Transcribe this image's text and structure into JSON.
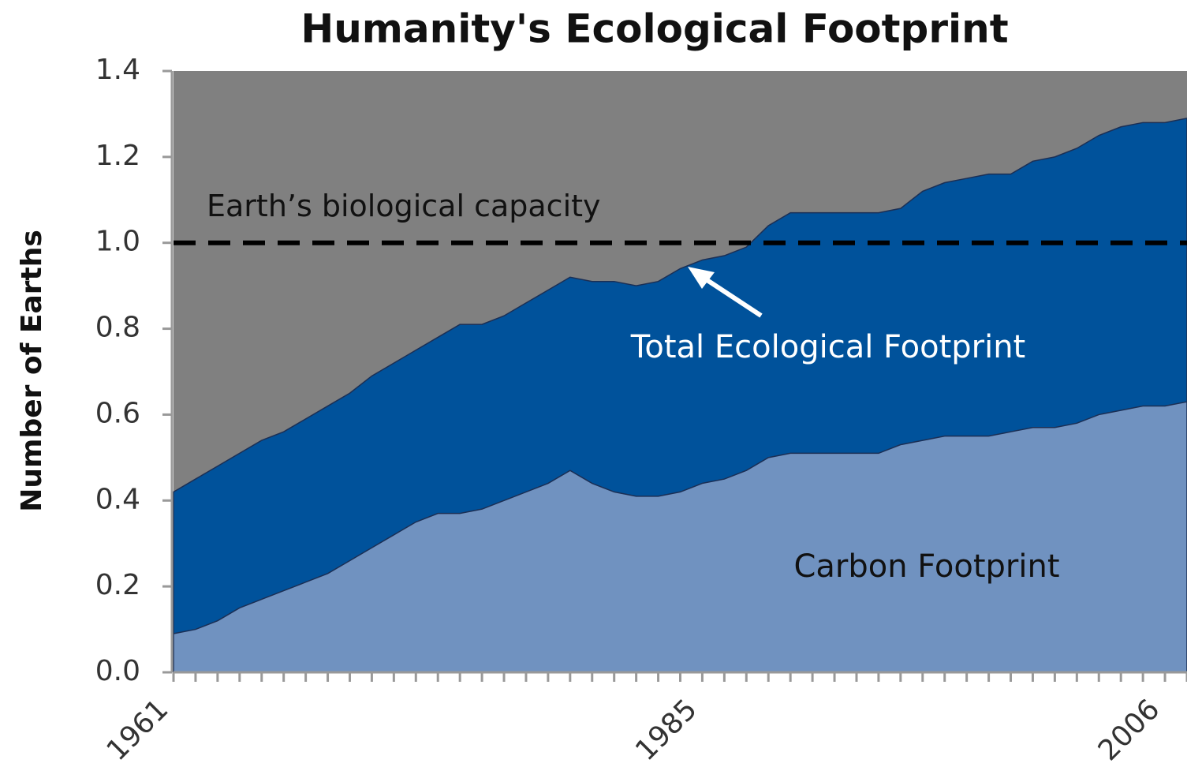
{
  "chart_data": {
    "type": "area",
    "title": "Humanity's Ecological Footprint",
    "y_label": "Number of Earths",
    "x": [
      1961,
      1962,
      1963,
      1964,
      1965,
      1966,
      1967,
      1968,
      1969,
      1970,
      1971,
      1972,
      1973,
      1974,
      1975,
      1976,
      1977,
      1978,
      1979,
      1980,
      1981,
      1982,
      1983,
      1984,
      1985,
      1986,
      1987,
      1988,
      1989,
      1990,
      1991,
      1992,
      1993,
      1994,
      1995,
      1996,
      1997,
      1998,
      1999,
      2000,
      2001,
      2002,
      2003,
      2004,
      2005,
      2006,
      2007
    ],
    "series": [
      {
        "name": "Total Ecological Footprint",
        "color": "#00529b",
        "values": [
          0.42,
          0.45,
          0.48,
          0.51,
          0.54,
          0.56,
          0.59,
          0.62,
          0.65,
          0.69,
          0.72,
          0.75,
          0.78,
          0.81,
          0.81,
          0.83,
          0.86,
          0.89,
          0.92,
          0.91,
          0.91,
          0.9,
          0.91,
          0.94,
          0.96,
          0.97,
          0.99,
          1.04,
          1.07,
          1.07,
          1.07,
          1.07,
          1.07,
          1.08,
          1.12,
          1.14,
          1.15,
          1.16,
          1.16,
          1.19,
          1.2,
          1.22,
          1.25,
          1.27,
          1.28,
          1.28,
          1.29
        ]
      },
      {
        "name": "Carbon Footprint",
        "color": "#7092c0",
        "values": [
          0.09,
          0.1,
          0.12,
          0.15,
          0.17,
          0.19,
          0.21,
          0.23,
          0.26,
          0.29,
          0.32,
          0.35,
          0.37,
          0.37,
          0.38,
          0.4,
          0.42,
          0.44,
          0.47,
          0.44,
          0.42,
          0.41,
          0.41,
          0.42,
          0.44,
          0.45,
          0.47,
          0.5,
          0.51,
          0.51,
          0.51,
          0.51,
          0.51,
          0.53,
          0.54,
          0.55,
          0.55,
          0.55,
          0.56,
          0.57,
          0.57,
          0.58,
          0.6,
          0.61,
          0.62,
          0.62,
          0.63
        ]
      }
    ],
    "reference_line": {
      "value": 1,
      "label": "Earth’s biological capacity"
    },
    "background_color": "#808080",
    "xlim": [
      1961,
      2007
    ],
    "xticks": [
      1961,
      1985,
      2006
    ],
    "ylim": [
      0,
      1.4
    ],
    "yticks": [
      {
        "value": 0,
        "label": "0.0"
      },
      0.2,
      0.4,
      0.6,
      0.8,
      {
        "value": 1,
        "label": "1.0"
      },
      1.2,
      1.4
    ]
  }
}
